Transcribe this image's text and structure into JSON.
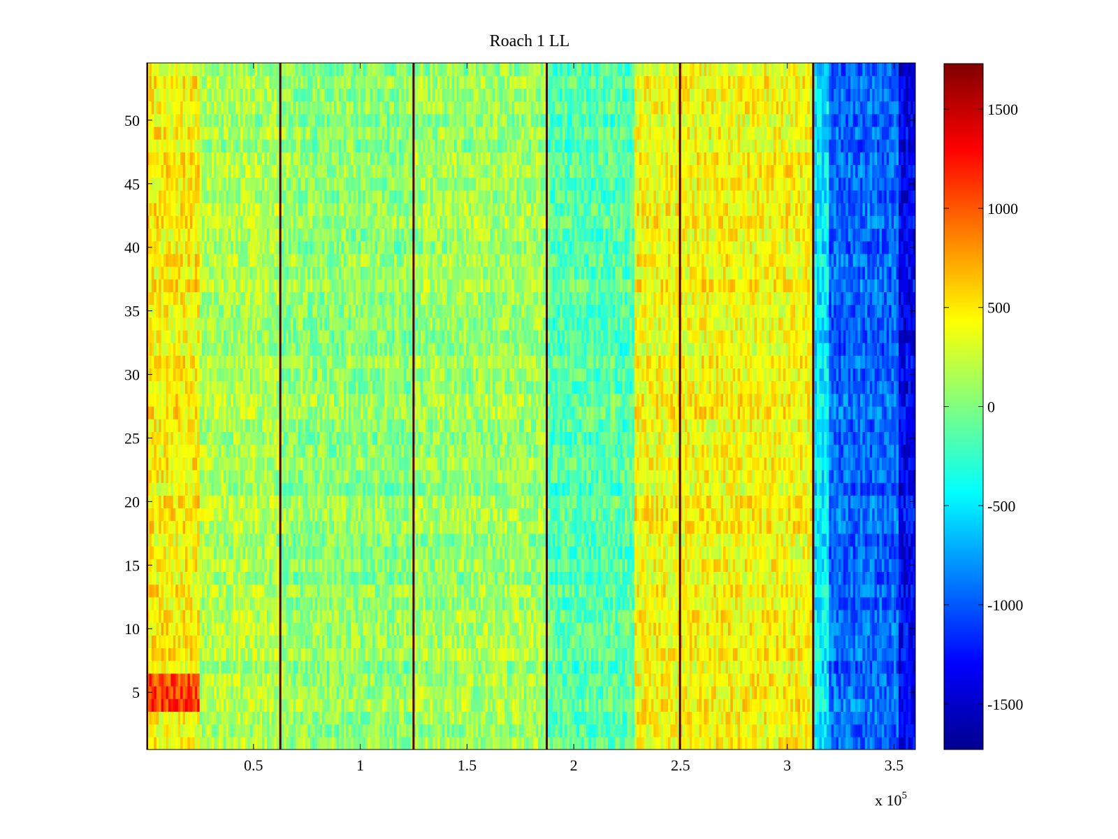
{
  "chart_data": {
    "type": "heatmap",
    "title": "Roach 1 LL",
    "xlabel": "",
    "ylabel": "",
    "x_multiplier_label": "x 10",
    "x_multiplier_exponent": "5",
    "xlim": [
      0,
      360000
    ],
    "ylim": [
      0.5,
      54.5
    ],
    "x_ticks": [
      0.5,
      1,
      1.5,
      2,
      2.5,
      3,
      3.5
    ],
    "x_tick_labels": [
      "0.5",
      "1",
      "1.5",
      "2",
      "2.5",
      "3",
      "3.5"
    ],
    "y_ticks": [
      5,
      10,
      15,
      20,
      25,
      30,
      35,
      40,
      45,
      50
    ],
    "y_tick_labels": [
      "5",
      "10",
      "15",
      "20",
      "25",
      "30",
      "35",
      "40",
      "45",
      "50"
    ],
    "rows": 54,
    "colorbar": {
      "colormap": "jet",
      "clim": [
        -1730,
        1730
      ],
      "ticks": [
        -1500,
        -1000,
        -500,
        0,
        500,
        1000,
        1500
      ],
      "tick_labels": [
        "-1500",
        "-1000",
        "-500",
        "0",
        "500",
        "1000",
        "1500"
      ]
    },
    "segment_boundaries_x": [
      0,
      62400,
      124800,
      187200,
      249600,
      312000
    ],
    "approx_segment_levels": [
      {
        "x_range": [
          0,
          25000
        ],
        "value": 450
      },
      {
        "x_range": [
          25000,
          62400
        ],
        "value": 150
      },
      {
        "x_range": [
          62400,
          124800
        ],
        "value": 50
      },
      {
        "x_range": [
          124800,
          187200
        ],
        "value": 100
      },
      {
        "x_range": [
          187200,
          228000
        ],
        "value": -150
      },
      {
        "x_range": [
          228000,
          249600
        ],
        "value": 400
      },
      {
        "x_range": [
          249600,
          312000
        ],
        "value": 420
      },
      {
        "x_range": [
          312000,
          320000
        ],
        "value": -500
      },
      {
        "x_range": [
          320000,
          360000
        ],
        "value": -950
      }
    ]
  }
}
